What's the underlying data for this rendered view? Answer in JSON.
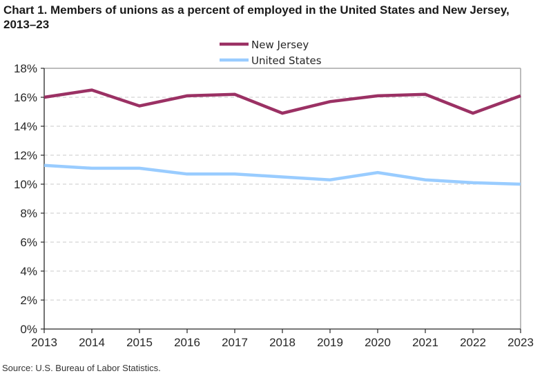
{
  "chart_data": {
    "type": "line",
    "title": "Chart 1. Members of unions as a percent of employed  in the United States and New Jersey, 2013–23",
    "xlabel": "",
    "ylabel": "",
    "x": [
      2013,
      2014,
      2015,
      2016,
      2017,
      2018,
      2019,
      2020,
      2021,
      2022,
      2023
    ],
    "x_tick_labels": [
      "2013",
      "2014",
      "2015",
      "2016",
      "2017",
      "2018",
      "2019",
      "2020",
      "2021",
      "2022",
      "2023"
    ],
    "ylim": [
      0,
      18
    ],
    "y_ticks": [
      0,
      2,
      4,
      6,
      8,
      10,
      12,
      14,
      16,
      18
    ],
    "y_tick_labels": [
      "0%",
      "2%",
      "4%",
      "6%",
      "8%",
      "10%",
      "12%",
      "14%",
      "16%",
      "18%"
    ],
    "grid": "horizontal dashed",
    "legend_position": "top-center",
    "series": [
      {
        "name": "New Jersey",
        "color": "#9b3164",
        "values": [
          16.0,
          16.5,
          15.4,
          16.1,
          16.2,
          14.9,
          15.7,
          16.1,
          16.2,
          14.9,
          16.1
        ]
      },
      {
        "name": "United States",
        "color": "#99ccff",
        "values": [
          11.3,
          11.1,
          11.1,
          10.7,
          10.7,
          10.5,
          10.3,
          10.8,
          10.3,
          10.1,
          10.0
        ]
      }
    ],
    "source": "Source: U.S. Bureau  of Labor Statistics."
  }
}
